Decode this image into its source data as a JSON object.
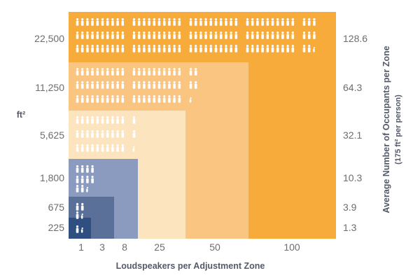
{
  "chart_data": {
    "type": "nested-area",
    "title": "",
    "xlabel": "Loudspeakers per Adjustment Zone",
    "ylabel_left": "ft²",
    "ylabel_right": "Average Number of Occupants per Zone",
    "ylabel_right_sub": "(175 ft² per person)",
    "categories": [
      "1",
      "3",
      "8",
      "25",
      "50",
      "100"
    ],
    "area_ft2": [
      "225",
      "675",
      "1,800",
      "5,625",
      "11,250",
      "22,500"
    ],
    "occupants": [
      "1.3",
      "3.9",
      "10.3",
      "32.1",
      "64.3",
      "128.6"
    ],
    "occupants_values": [
      1.3,
      3.9,
      10.3,
      32.1,
      64.3,
      128.6
    ],
    "colors": {
      "blue": [
        "#2e4f80",
        "#5b7099",
        "#8b9abf"
      ],
      "orange": [
        "#fce4bf",
        "#fac481",
        "#f6ab3b"
      ],
      "figure": "#ffffff"
    }
  }
}
